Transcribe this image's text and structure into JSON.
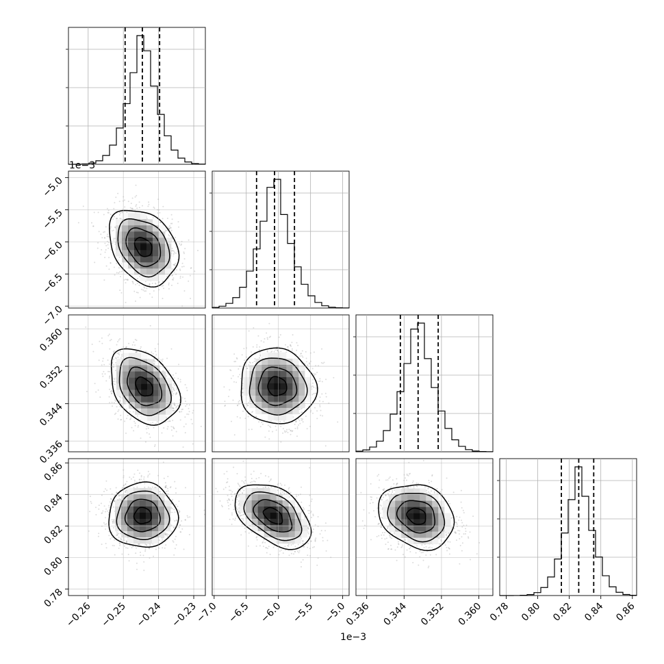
{
  "chart_data": {
    "type": "corner",
    "parameters": [
      {
        "ticks": [
          -0.26,
          -0.25,
          -0.24,
          -0.23
        ],
        "tick_labels": [
          "−0.26",
          "−0.25",
          "−0.24",
          "−0.23"
        ],
        "range": [
          -0.2656,
          -0.2267
        ],
        "quantiles": [
          -0.2495,
          -0.2446,
          -0.2397
        ],
        "hist_max": 0.94
      },
      {
        "ticks": [
          -7.0,
          -6.5,
          -6.0,
          -5.5,
          -5.0
        ],
        "tick_labels": [
          "−7.0",
          "−6.5",
          "−6.0",
          "−5.5",
          "−5.0"
        ],
        "range": [
          -7.03,
          -4.9
        ],
        "quantiles": [
          -6.34,
          -6.06,
          -5.75
        ],
        "hist_max": 0.94,
        "offset_label": "1e−3"
      },
      {
        "ticks": [
          0.336,
          0.344,
          0.352,
          0.36
        ],
        "tick_labels": [
          "0.336",
          "0.344",
          "0.352",
          "0.360"
        ],
        "range": [
          0.3337,
          0.363
        ],
        "quantiles": [
          0.3432,
          0.347,
          0.3513
        ],
        "hist_max": 0.94
      },
      {
        "ticks": [
          0.78,
          0.8,
          0.82,
          0.84,
          0.86
        ],
        "tick_labels": [
          "0.78",
          "0.80",
          "0.82",
          "0.84",
          "0.86"
        ],
        "range": [
          0.7759,
          0.8627
        ],
        "quantiles": [
          0.815,
          0.826,
          0.8355
        ],
        "hist_max": 0.94
      }
    ],
    "panels": [
      {
        "row": 1,
        "col": 0,
        "center": [
          -0.2443,
          -6.08
        ],
        "rho": -0.3
      },
      {
        "row": 2,
        "col": 0,
        "center": [
          -0.2441,
          0.3476
        ],
        "rho": -0.35
      },
      {
        "row": 2,
        "col": 1,
        "center": [
          -6.02,
          0.3477
        ],
        "rho": -0.05
      },
      {
        "row": 3,
        "col": 0,
        "center": [
          -0.2445,
          0.8265
        ],
        "rho": 0.0
      },
      {
        "row": 3,
        "col": 1,
        "center": [
          -6.08,
          0.8265
        ],
        "rho": -0.45
      },
      {
        "row": 3,
        "col": 2,
        "center": [
          0.3467,
          0.8262
        ],
        "rho": -0.2
      }
    ],
    "grid": true
  }
}
